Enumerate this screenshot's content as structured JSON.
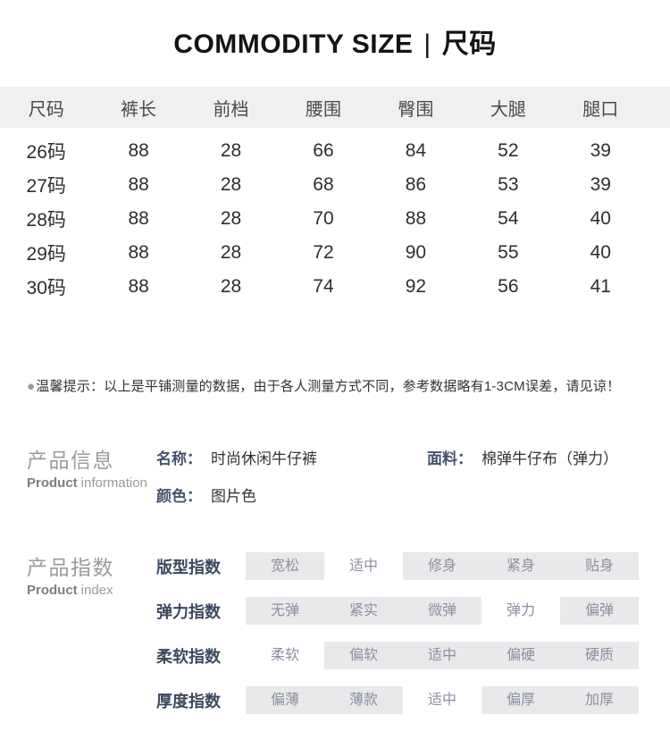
{
  "title": {
    "en": "COMMODITY SIZE",
    "separator": "|",
    "zh": "尺码"
  },
  "size_table": {
    "columns": [
      "尺码",
      "裤长",
      "前档",
      "腰围",
      "臀围",
      "大腿",
      "腿口"
    ],
    "rows": [
      [
        "26码",
        "88",
        "28",
        "66",
        "84",
        "52",
        "39"
      ],
      [
        "27码",
        "88",
        "28",
        "68",
        "86",
        "53",
        "39"
      ],
      [
        "28码",
        "88",
        "28",
        "70",
        "88",
        "54",
        "40"
      ],
      [
        "29码",
        "88",
        "28",
        "72",
        "90",
        "55",
        "40"
      ],
      [
        "30码",
        "88",
        "28",
        "74",
        "92",
        "56",
        "41"
      ]
    ]
  },
  "notice": {
    "bullet": "●",
    "text": "温馨提示：以上是平铺测量的数据，由于各人测量方式不同，参考数据略有1-3CM误差，请见谅！"
  },
  "product_info": {
    "heading_zh": "产品信息",
    "heading_en_bold": "Product",
    "heading_en_rest": "information",
    "fields": [
      {
        "label": "名称：",
        "value": "时尚休闲牛仔裤"
      },
      {
        "label": "面料：",
        "value": "棉弹牛仔布（弹力）"
      },
      {
        "label": "颜色：",
        "value": "图片色"
      }
    ]
  },
  "product_index": {
    "heading_zh": "产品指数",
    "heading_en_bold": "Product",
    "heading_en_rest": "index",
    "rows": [
      {
        "label": "版型指数",
        "options": [
          "宽松",
          "适中",
          "修身",
          "紧身",
          "贴身"
        ],
        "selected": 1
      },
      {
        "label": "弹力指数",
        "options": [
          "无弹",
          "紧实",
          "微弹",
          "弹力",
          "偏弹"
        ],
        "selected": 3
      },
      {
        "label": "柔软指数",
        "options": [
          "柔软",
          "偏软",
          "适中",
          "偏硬",
          "硬质"
        ],
        "selected": 0
      },
      {
        "label": "厚度指数",
        "options": [
          "偏薄",
          "薄款",
          "适中",
          "偏厚",
          "加厚"
        ],
        "selected": 2
      }
    ]
  },
  "colors": {
    "header_bg": "#f0f0f0",
    "option_bg": "#e9e9eb",
    "option_text": "#8a90a0",
    "index_label": "#3c4960",
    "info_label": "#46536f",
    "section_heading": "#9b9b9b"
  }
}
